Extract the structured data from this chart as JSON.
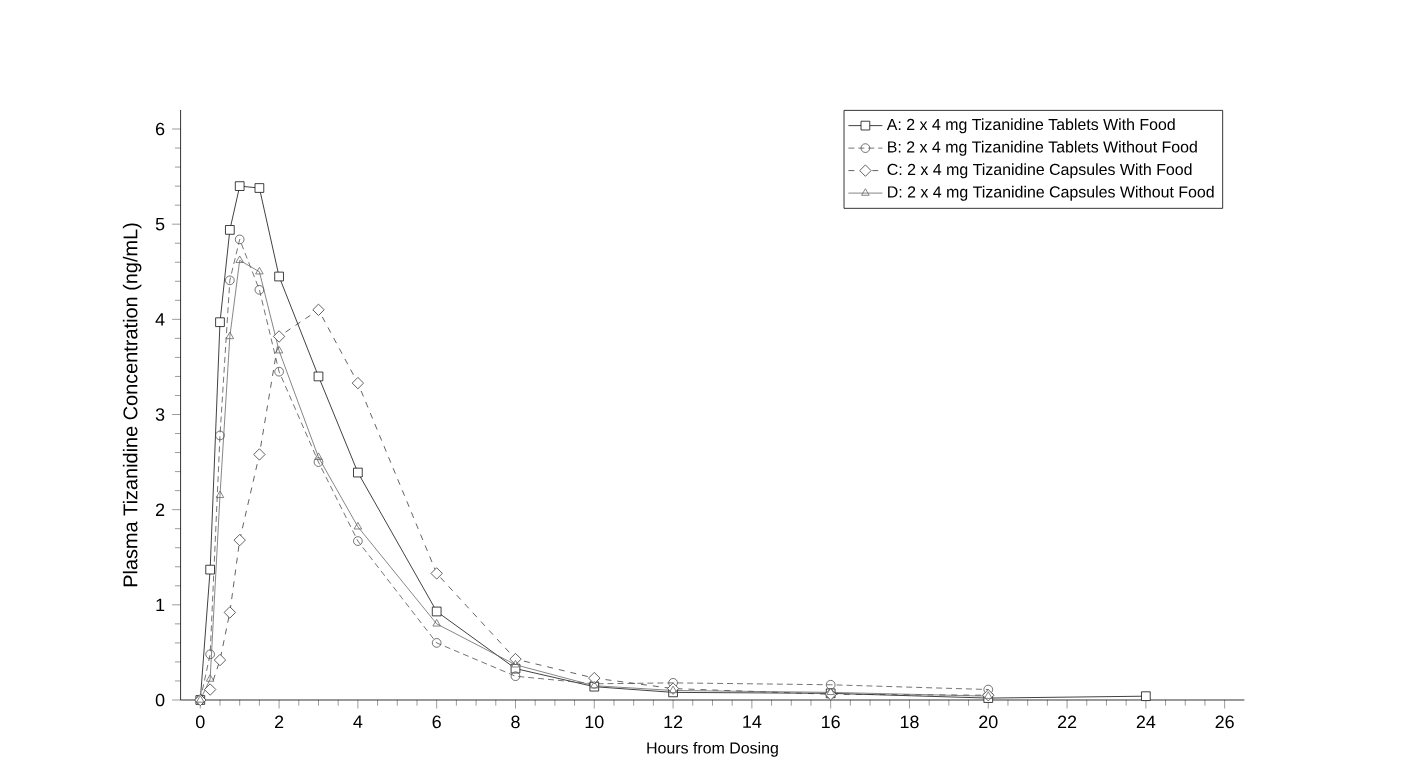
{
  "chart_data": {
    "type": "line",
    "xlabel": "Hours from Dosing",
    "ylabel": "Plasma Tizanidine Concentration  (ng/mL)",
    "x": [
      0,
      0.25,
      0.5,
      0.75,
      1,
      1.5,
      2,
      3,
      4,
      6,
      8,
      10,
      12,
      16,
      20,
      24
    ],
    "series": [
      {
        "name": "A: 2 x 4 mg Tizanidine Tablets With Food",
        "color": "#111111",
        "marker": "square",
        "line_style": "solid",
        "values": [
          0,
          1.37,
          3.97,
          4.94,
          5.4,
          5.38,
          4.45,
          3.4,
          2.39,
          0.93,
          0.33,
          0.14,
          0.08,
          0.07,
          0.02,
          0.04
        ]
      },
      {
        "name": "B: 2 x 4 mg Tizanidine Tablets Without Food",
        "color": "#505050",
        "marker": "circle",
        "line_style": "dotted",
        "values": [
          0,
          0.48,
          2.78,
          4.41,
          4.84,
          4.31,
          3.45,
          2.5,
          1.67,
          0.6,
          0.25,
          0.17,
          0.18,
          0.16,
          0.11,
          null
        ]
      },
      {
        "name": "C: 2 x 4 mg Tizanidine Capsules With Food",
        "color": "#3a3a3a",
        "marker": "diamond",
        "line_style": "dashed",
        "values": [
          0,
          0.11,
          0.42,
          0.92,
          1.68,
          2.58,
          3.82,
          4.1,
          3.33,
          1.33,
          0.43,
          0.23,
          0.12,
          0.06,
          0.05,
          null
        ]
      },
      {
        "name": "D: 2 x 4 mg Tizanidine Capsules Without Food",
        "color": "#666666",
        "marker": "triangle",
        "line_style": "solid",
        "values": [
          0,
          0.22,
          2.15,
          3.82,
          4.62,
          4.5,
          3.67,
          2.55,
          1.82,
          0.8,
          0.37,
          0.15,
          0.1,
          0.08,
          0.04,
          null
        ]
      }
    ],
    "xlim": [
      -0.5,
      26.5
    ],
    "ylim": [
      0,
      6.2
    ],
    "xticks": [
      0,
      2,
      4,
      6,
      8,
      10,
      12,
      14,
      16,
      18,
      20,
      22,
      24,
      26
    ],
    "yticks": [
      0,
      1,
      2,
      3,
      4,
      5,
      6
    ],
    "grid": false,
    "legend": "top right"
  }
}
